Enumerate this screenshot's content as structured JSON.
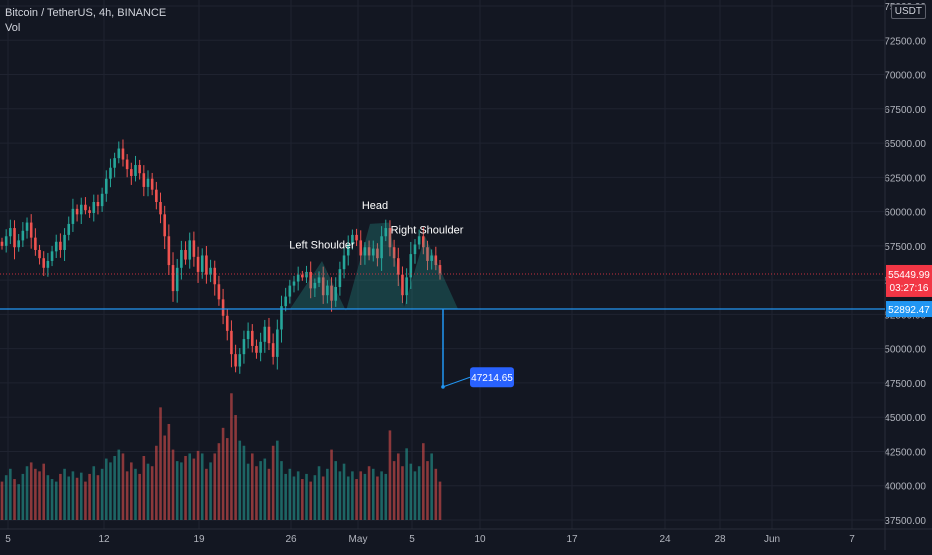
{
  "header": {
    "symbol_line": "Bitcoin / TetherUS, 4h, BINANCE",
    "volume_label": "Vol"
  },
  "currency_badge": "USDT",
  "colors": {
    "background": "#131722",
    "up": "#26a69a",
    "down": "#ef5350",
    "grid": "#1f2330",
    "axis_text": "#b2b5be",
    "current_price": "#f23645",
    "neckline": "#2196f3"
  },
  "chart_data": {
    "type": "candlestick",
    "interval": "4h",
    "y_axis": {
      "min": 37500,
      "max": 75000,
      "ticks": [
        "37500.00",
        "40000.00",
        "42500.00",
        "45000.00",
        "47500.00",
        "50000.00",
        "52500.00",
        "55000.00",
        "57500.00",
        "60000.00",
        "62500.00",
        "65000.00",
        "67500.00",
        "70000.00",
        "72500.00",
        "75000.00"
      ]
    },
    "x_axis": {
      "ticks": [
        "5",
        "12",
        "19",
        "26",
        "May",
        "5",
        "10",
        "17",
        "24",
        "28",
        "Jun",
        "7"
      ]
    },
    "current_price": {
      "value": "55449.99",
      "countdown": "03:27:16"
    },
    "neckline": {
      "value": "52892.47"
    },
    "target": {
      "value": "47214.65"
    },
    "pattern": {
      "name": "Head and Shoulders",
      "labels": [
        "Left Shoulder",
        "Head",
        "Right Shoulder"
      ]
    },
    "price_path": [
      57500,
      58200,
      58800,
      57400,
      57900,
      58600,
      59200,
      58100,
      57200,
      56600,
      55900,
      56400,
      57100,
      57800,
      57200,
      58300,
      59100,
      60200,
      59800,
      60500,
      60100,
      59900,
      60700,
      60400,
      61300,
      62400,
      63200,
      63900,
      64600,
      63800,
      63100,
      62600,
      63400,
      62800,
      61800,
      62400,
      61600,
      60700,
      59800,
      58200,
      56100,
      54200,
      55900,
      57200,
      56500,
      57900,
      56700,
      55600,
      56800,
      55400,
      55900,
      54700,
      53600,
      52400,
      51300,
      49600,
      48700,
      49600,
      50700,
      51300,
      50200,
      49700,
      50500,
      51600,
      50400,
      49400,
      51400,
      53100,
      53800,
      54600,
      54900,
      55400,
      55200,
      55600,
      54400,
      54800,
      55200,
      53900,
      54600,
      53500,
      54500,
      55800,
      56800,
      57600,
      58300,
      57900,
      56800,
      57400,
      56800,
      57300,
      56600,
      58200,
      58800,
      57400,
      56600,
      55400,
      53900,
      55200,
      56900,
      57600,
      58200,
      57400,
      56400,
      56800,
      56100,
      55500
    ],
    "volume_path": [
      0.3,
      0.35,
      0.4,
      0.32,
      0.28,
      0.36,
      0.42,
      0.45,
      0.4,
      0.38,
      0.44,
      0.35,
      0.32,
      0.3,
      0.36,
      0.4,
      0.34,
      0.38,
      0.33,
      0.37,
      0.3,
      0.36,
      0.42,
      0.35,
      0.4,
      0.48,
      0.45,
      0.5,
      0.55,
      0.52,
      0.38,
      0.45,
      0.4,
      0.36,
      0.5,
      0.44,
      0.42,
      0.58,
      0.88,
      0.66,
      0.75,
      0.55,
      0.46,
      0.45,
      0.5,
      0.52,
      0.48,
      0.54,
      0.52,
      0.4,
      0.45,
      0.52,
      0.6,
      0.72,
      0.64,
      0.99,
      0.82,
      0.62,
      0.58,
      0.44,
      0.52,
      0.42,
      0.46,
      0.48,
      0.4,
      0.58,
      0.62,
      0.46,
      0.36,
      0.4,
      0.34,
      0.38,
      0.32,
      0.36,
      0.3,
      0.35,
      0.42,
      0.34,
      0.4,
      0.55,
      0.46,
      0.38,
      0.44,
      0.34,
      0.38,
      0.32,
      0.38,
      0.36,
      0.42,
      0.4,
      0.34,
      0.38,
      0.36,
      0.7,
      0.46,
      0.52,
      0.42,
      0.56,
      0.44,
      0.38,
      0.42,
      0.6,
      0.46,
      0.52,
      0.4,
      0.3
    ]
  }
}
